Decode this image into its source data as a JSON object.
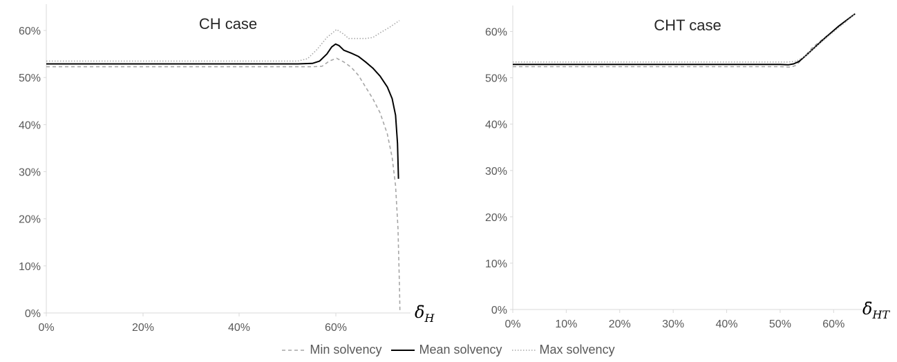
{
  "chart_data": [
    {
      "type": "line",
      "title": "CH case",
      "xlabel": "δ̄",
      "xlabel_sub": "H",
      "xlim": [
        0,
        0.75
      ],
      "ylim": [
        0,
        0.65
      ],
      "xticks": [
        "0%",
        "20%",
        "40%",
        "60%"
      ],
      "yticks": [
        "0%",
        "10%",
        "20%",
        "30%",
        "40%",
        "50%",
        "60%"
      ],
      "series": [
        {
          "name": "Min solvency",
          "color": "#a6a6a6",
          "style": "dashed",
          "points": [
            [
              0,
              0.523
            ],
            [
              0.55,
              0.523
            ],
            [
              0.57,
              0.524
            ],
            [
              0.585,
              0.535
            ],
            [
              0.6,
              0.541
            ],
            [
              0.615,
              0.533
            ],
            [
              0.63,
              0.522
            ],
            [
              0.645,
              0.505
            ],
            [
              0.66,
              0.48
            ],
            [
              0.675,
              0.455
            ],
            [
              0.69,
              0.425
            ],
            [
              0.705,
              0.38
            ],
            [
              0.715,
              0.33
            ],
            [
              0.722,
              0.27
            ],
            [
              0.727,
              0.18
            ],
            [
              0.73,
              0.06
            ],
            [
              0.731,
              0.005
            ]
          ]
        },
        {
          "name": "Mean solvency",
          "color": "#000000",
          "style": "solid",
          "points": [
            [
              0,
              0.529
            ],
            [
              0.52,
              0.529
            ],
            [
              0.55,
              0.53
            ],
            [
              0.565,
              0.535
            ],
            [
              0.58,
              0.55
            ],
            [
              0.59,
              0.565
            ],
            [
              0.598,
              0.571
            ],
            [
              0.605,
              0.568
            ],
            [
              0.615,
              0.558
            ],
            [
              0.63,
              0.552
            ],
            [
              0.645,
              0.545
            ],
            [
              0.66,
              0.533
            ],
            [
              0.675,
              0.52
            ],
            [
              0.69,
              0.503
            ],
            [
              0.705,
              0.48
            ],
            [
              0.715,
              0.455
            ],
            [
              0.722,
              0.42
            ],
            [
              0.726,
              0.36
            ],
            [
              0.728,
              0.285
            ]
          ]
        },
        {
          "name": "Max solvency",
          "color": "#a6a6a6",
          "style": "dotted",
          "points": [
            [
              0,
              0.535
            ],
            [
              0.52,
              0.535
            ],
            [
              0.54,
              0.54
            ],
            [
              0.56,
              0.56
            ],
            [
              0.58,
              0.585
            ],
            [
              0.6,
              0.602
            ],
            [
              0.615,
              0.592
            ],
            [
              0.625,
              0.583
            ],
            [
              0.64,
              0.583
            ],
            [
              0.66,
              0.583
            ],
            [
              0.675,
              0.585
            ],
            [
              0.69,
              0.595
            ],
            [
              0.71,
              0.607
            ],
            [
              0.73,
              0.621
            ]
          ]
        }
      ]
    },
    {
      "type": "line",
      "title": "CHT case",
      "xlabel": "δ̄",
      "xlabel_sub": "HT",
      "xlim": [
        0,
        0.65
      ],
      "ylim": [
        0,
        0.65
      ],
      "xticks": [
        "0%",
        "10%",
        "20%",
        "30%",
        "40%",
        "50%",
        "60%"
      ],
      "yticks": [
        "0%",
        "10%",
        "20%",
        "30%",
        "40%",
        "50%",
        "60%"
      ],
      "series": [
        {
          "name": "Min solvency",
          "color": "#a6a6a6",
          "style": "dashed",
          "points": [
            [
              0,
              0.524
            ],
            [
              0.5,
              0.524
            ],
            [
              0.52,
              0.523
            ],
            [
              0.53,
              0.527
            ],
            [
              0.545,
              0.545
            ],
            [
              0.56,
              0.565
            ],
            [
              0.59,
              0.593
            ],
            [
              0.62,
              0.62
            ],
            [
              0.64,
              0.638
            ]
          ]
        },
        {
          "name": "Mean solvency",
          "color": "#000000",
          "style": "solid",
          "points": [
            [
              0,
              0.529
            ],
            [
              0.5,
              0.529
            ],
            [
              0.515,
              0.528
            ],
            [
              0.525,
              0.53
            ],
            [
              0.535,
              0.535
            ],
            [
              0.55,
              0.55
            ],
            [
              0.58,
              0.582
            ],
            [
              0.61,
              0.612
            ],
            [
              0.64,
              0.638
            ]
          ]
        },
        {
          "name": "Max solvency",
          "color": "#a6a6a6",
          "style": "dotted",
          "points": [
            [
              0,
              0.534
            ],
            [
              0.5,
              0.534
            ],
            [
              0.515,
              0.534
            ],
            [
              0.53,
              0.536
            ],
            [
              0.545,
              0.545
            ],
            [
              0.56,
              0.56
            ],
            [
              0.59,
              0.59
            ],
            [
              0.62,
              0.618
            ],
            [
              0.64,
              0.638
            ]
          ]
        }
      ]
    }
  ],
  "legend": [
    {
      "label": "Min solvency",
      "color": "#a6a6a6",
      "style": "dashed"
    },
    {
      "label": "Mean solvency",
      "color": "#000000",
      "style": "solid"
    },
    {
      "label": "Max solvency",
      "color": "#a6a6a6",
      "style": "dotted"
    }
  ]
}
